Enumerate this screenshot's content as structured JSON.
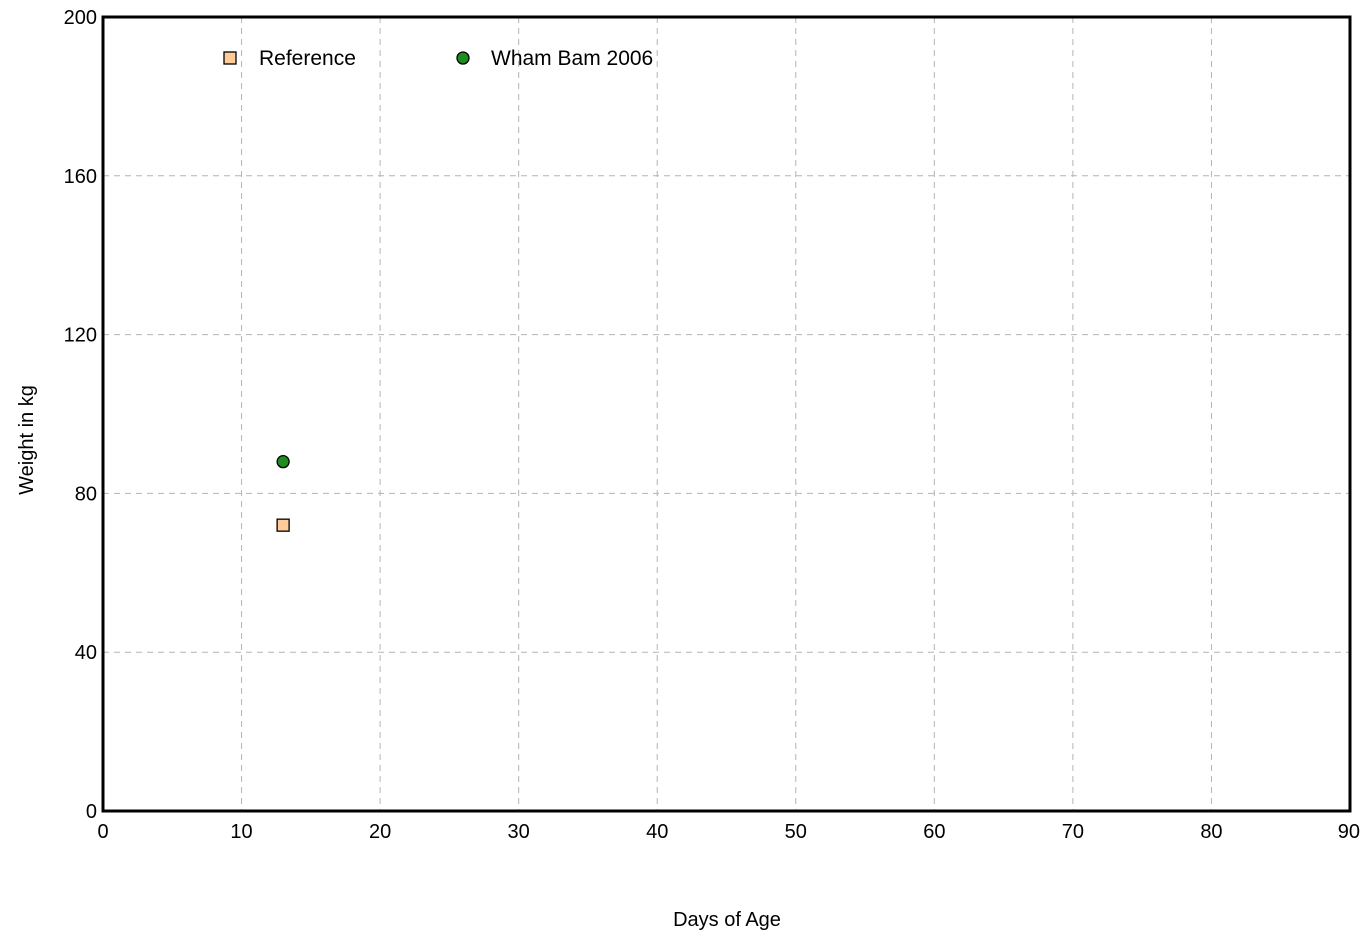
{
  "chart_data": {
    "type": "scatter",
    "title": "",
    "xlabel": "Days of Age",
    "ylabel": "Weight in kg",
    "xlim": [
      0,
      90
    ],
    "ylim": [
      0,
      200
    ],
    "x_ticks": [
      0,
      10,
      20,
      30,
      40,
      50,
      60,
      70,
      80,
      90
    ],
    "y_ticks": [
      0,
      40,
      80,
      120,
      160,
      200
    ],
    "grid": true,
    "legend_position": "top-left",
    "series": [
      {
        "name": "Reference",
        "marker": "square",
        "color": "#FFCC99",
        "points": [
          {
            "x": 13,
            "y": 72
          }
        ]
      },
      {
        "name": "Wham Bam 2006",
        "marker": "circle",
        "color": "#1E8C1E",
        "points": [
          {
            "x": 13,
            "y": 88
          }
        ]
      }
    ]
  }
}
